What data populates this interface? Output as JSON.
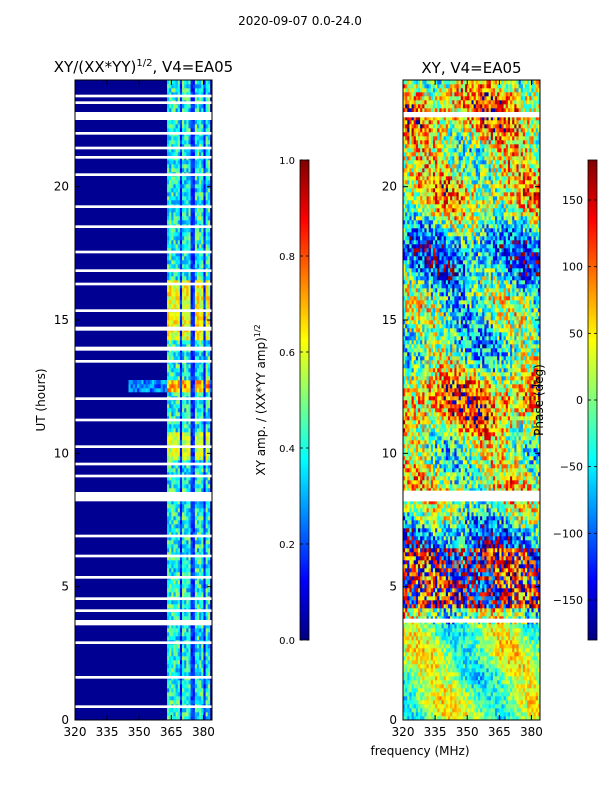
{
  "figure": {
    "title": "2020-09-07 0.0-24.0",
    "shared_xlabel": "frequency (MHz)"
  },
  "colors": {
    "cmap": [
      "#00007f",
      "#0000ff",
      "#007fff",
      "#00ffff",
      "#7fff7f",
      "#ffff00",
      "#ff7f00",
      "#ff0000",
      "#7f0000"
    ],
    "gap": "#ffffff",
    "axis": "#000000"
  },
  "chart_data": [
    {
      "type": "heatmap",
      "title": "XY/(XX*YY)",
      "title_exponent": "1/2",
      "title_suffix": ", V4=EA05",
      "xlabel": "",
      "ylabel": "UT (hours)",
      "xlim": [
        320,
        384
      ],
      "ylim": [
        0,
        24
      ],
      "xticks": [
        320,
        335,
        350,
        365,
        380
      ],
      "yticks": [
        0,
        5,
        10,
        15,
        20
      ],
      "colorbar": {
        "label": "XY amp. / (XX*YY amp)",
        "label_exponent": "1/2",
        "range": [
          0.0,
          1.0
        ],
        "ticks": [
          0.0,
          0.2,
          0.4,
          0.6,
          0.8,
          1.0
        ],
        "tick_labels": [
          "0.0",
          "0.2",
          "0.4",
          "0.6",
          "0.8",
          "1.0"
        ]
      },
      "strong_channels_mhz": [
        364,
        366,
        368,
        371,
        373,
        377,
        379,
        382
      ],
      "flagged_hours": [
        [
          0.45,
          0.55
        ],
        [
          1.55,
          1.65
        ],
        [
          2.85,
          2.95
        ],
        [
          3.55,
          3.75
        ],
        [
          4.05,
          4.15
        ],
        [
          4.5,
          4.6
        ],
        [
          5.3,
          5.4
        ],
        [
          6.1,
          6.2
        ],
        [
          6.85,
          6.95
        ],
        [
          8.2,
          8.55
        ],
        [
          9.1,
          9.2
        ],
        [
          9.55,
          9.65
        ],
        [
          10.2,
          10.3
        ],
        [
          11.2,
          11.3
        ],
        [
          12.0,
          12.1
        ],
        [
          13.4,
          13.5
        ],
        [
          13.85,
          14.0
        ],
        [
          14.6,
          14.75
        ],
        [
          15.3,
          15.4
        ],
        [
          16.3,
          16.4
        ],
        [
          16.8,
          16.9
        ],
        [
          17.5,
          17.6
        ],
        [
          18.45,
          18.55
        ],
        [
          19.2,
          19.3
        ],
        [
          20.4,
          20.5
        ],
        [
          21.05,
          21.15
        ],
        [
          21.4,
          21.5
        ],
        [
          21.95,
          22.05
        ],
        [
          22.5,
          22.8
        ],
        [
          23.1,
          23.2
        ],
        [
          23.35,
          23.45
        ]
      ],
      "notable_features": [
        {
          "ut_range": [
            12.3,
            12.8
          ],
          "value": 0.75,
          "description": "band of elevated amplitude"
        },
        {
          "ut_range": [
            14.2,
            16.5
          ],
          "value": 0.65,
          "description": "elevated amplitude in strong channels"
        },
        {
          "ut_range": [
            9.8,
            10.8
          ],
          "value": 0.6,
          "description": "elevated amplitude in strong channels"
        }
      ]
    },
    {
      "type": "heatmap",
      "title": "XY, V4=EA05",
      "xlabel": "",
      "ylabel": "",
      "xlim": [
        320,
        384
      ],
      "ylim": [
        0,
        24
      ],
      "xticks": [
        320,
        335,
        350,
        365,
        380
      ],
      "yticks": [
        0,
        5,
        10,
        15,
        20
      ],
      "colorbar": {
        "label": "Phase (deg)",
        "range": [
          -180,
          180
        ],
        "ticks": [
          -150,
          -100,
          -50,
          0,
          50,
          100,
          150
        ],
        "tick_labels": [
          "−150",
          "−100",
          "−50",
          "0",
          "50",
          "100",
          "150"
        ]
      },
      "flagged_hours": [
        [
          3.65,
          3.8
        ],
        [
          8.2,
          8.6
        ],
        [
          22.6,
          22.8
        ]
      ],
      "notable_features": [
        {
          "ut_range": [
            0.0,
            3.6
          ],
          "value": 0,
          "description": "mostly near-zero phase"
        },
        {
          "ut_range": [
            4.2,
            6.5
          ],
          "value": 170,
          "description": "phase wrapping near +/-180"
        }
      ]
    }
  ]
}
